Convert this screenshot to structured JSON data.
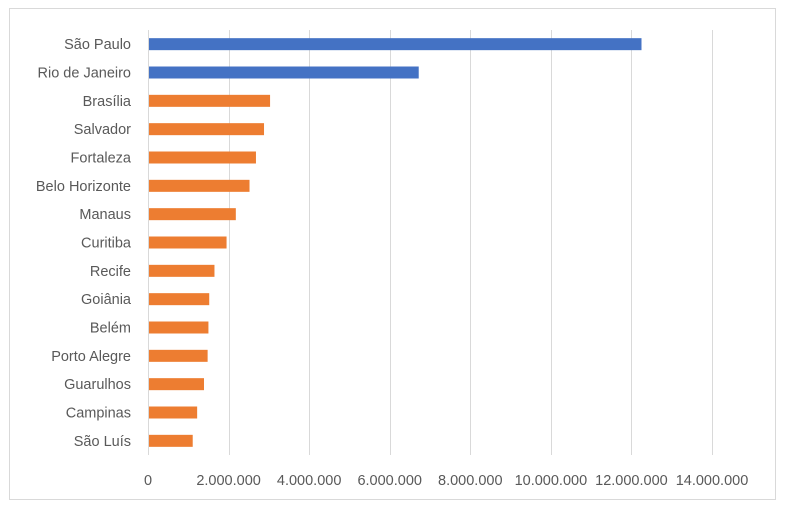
{
  "chart_data": {
    "type": "bar",
    "orientation": "horizontal",
    "categories": [
      "São Paulo",
      "Rio de Janeiro",
      "Brasília",
      "Salvador",
      "Fortaleza",
      "Belo Horizonte",
      "Manaus",
      "Curitiba",
      "Recife",
      "Goiânia",
      "Belém",
      "Porto Alegre",
      "Guarulhos",
      "Campinas",
      "São Luís"
    ],
    "values": [
      12250000,
      6720000,
      3030000,
      2880000,
      2680000,
      2520000,
      2180000,
      1950000,
      1650000,
      1520000,
      1500000,
      1480000,
      1390000,
      1220000,
      1110000
    ],
    "bar_colors": [
      "#4472c4",
      "#4472c4",
      "#ed7d31",
      "#ed7d31",
      "#ed7d31",
      "#ed7d31",
      "#ed7d31",
      "#ed7d31",
      "#ed7d31",
      "#ed7d31",
      "#ed7d31",
      "#ed7d31",
      "#ed7d31",
      "#ed7d31",
      "#ed7d31"
    ],
    "x_ticks": [
      0,
      2000000,
      4000000,
      6000000,
      8000000,
      10000000,
      12000000,
      14000000
    ],
    "x_tick_labels": [
      "0",
      "2.000.000",
      "4.000.000",
      "6.000.000",
      "8.000.000",
      "10.000.000",
      "12.000.000",
      "14.000.000"
    ],
    "xlim": [
      0,
      14000000
    ],
    "grid": true,
    "gridline_color": "#d9d9d9",
    "title": "",
    "xlabel": "",
    "ylabel": ""
  }
}
